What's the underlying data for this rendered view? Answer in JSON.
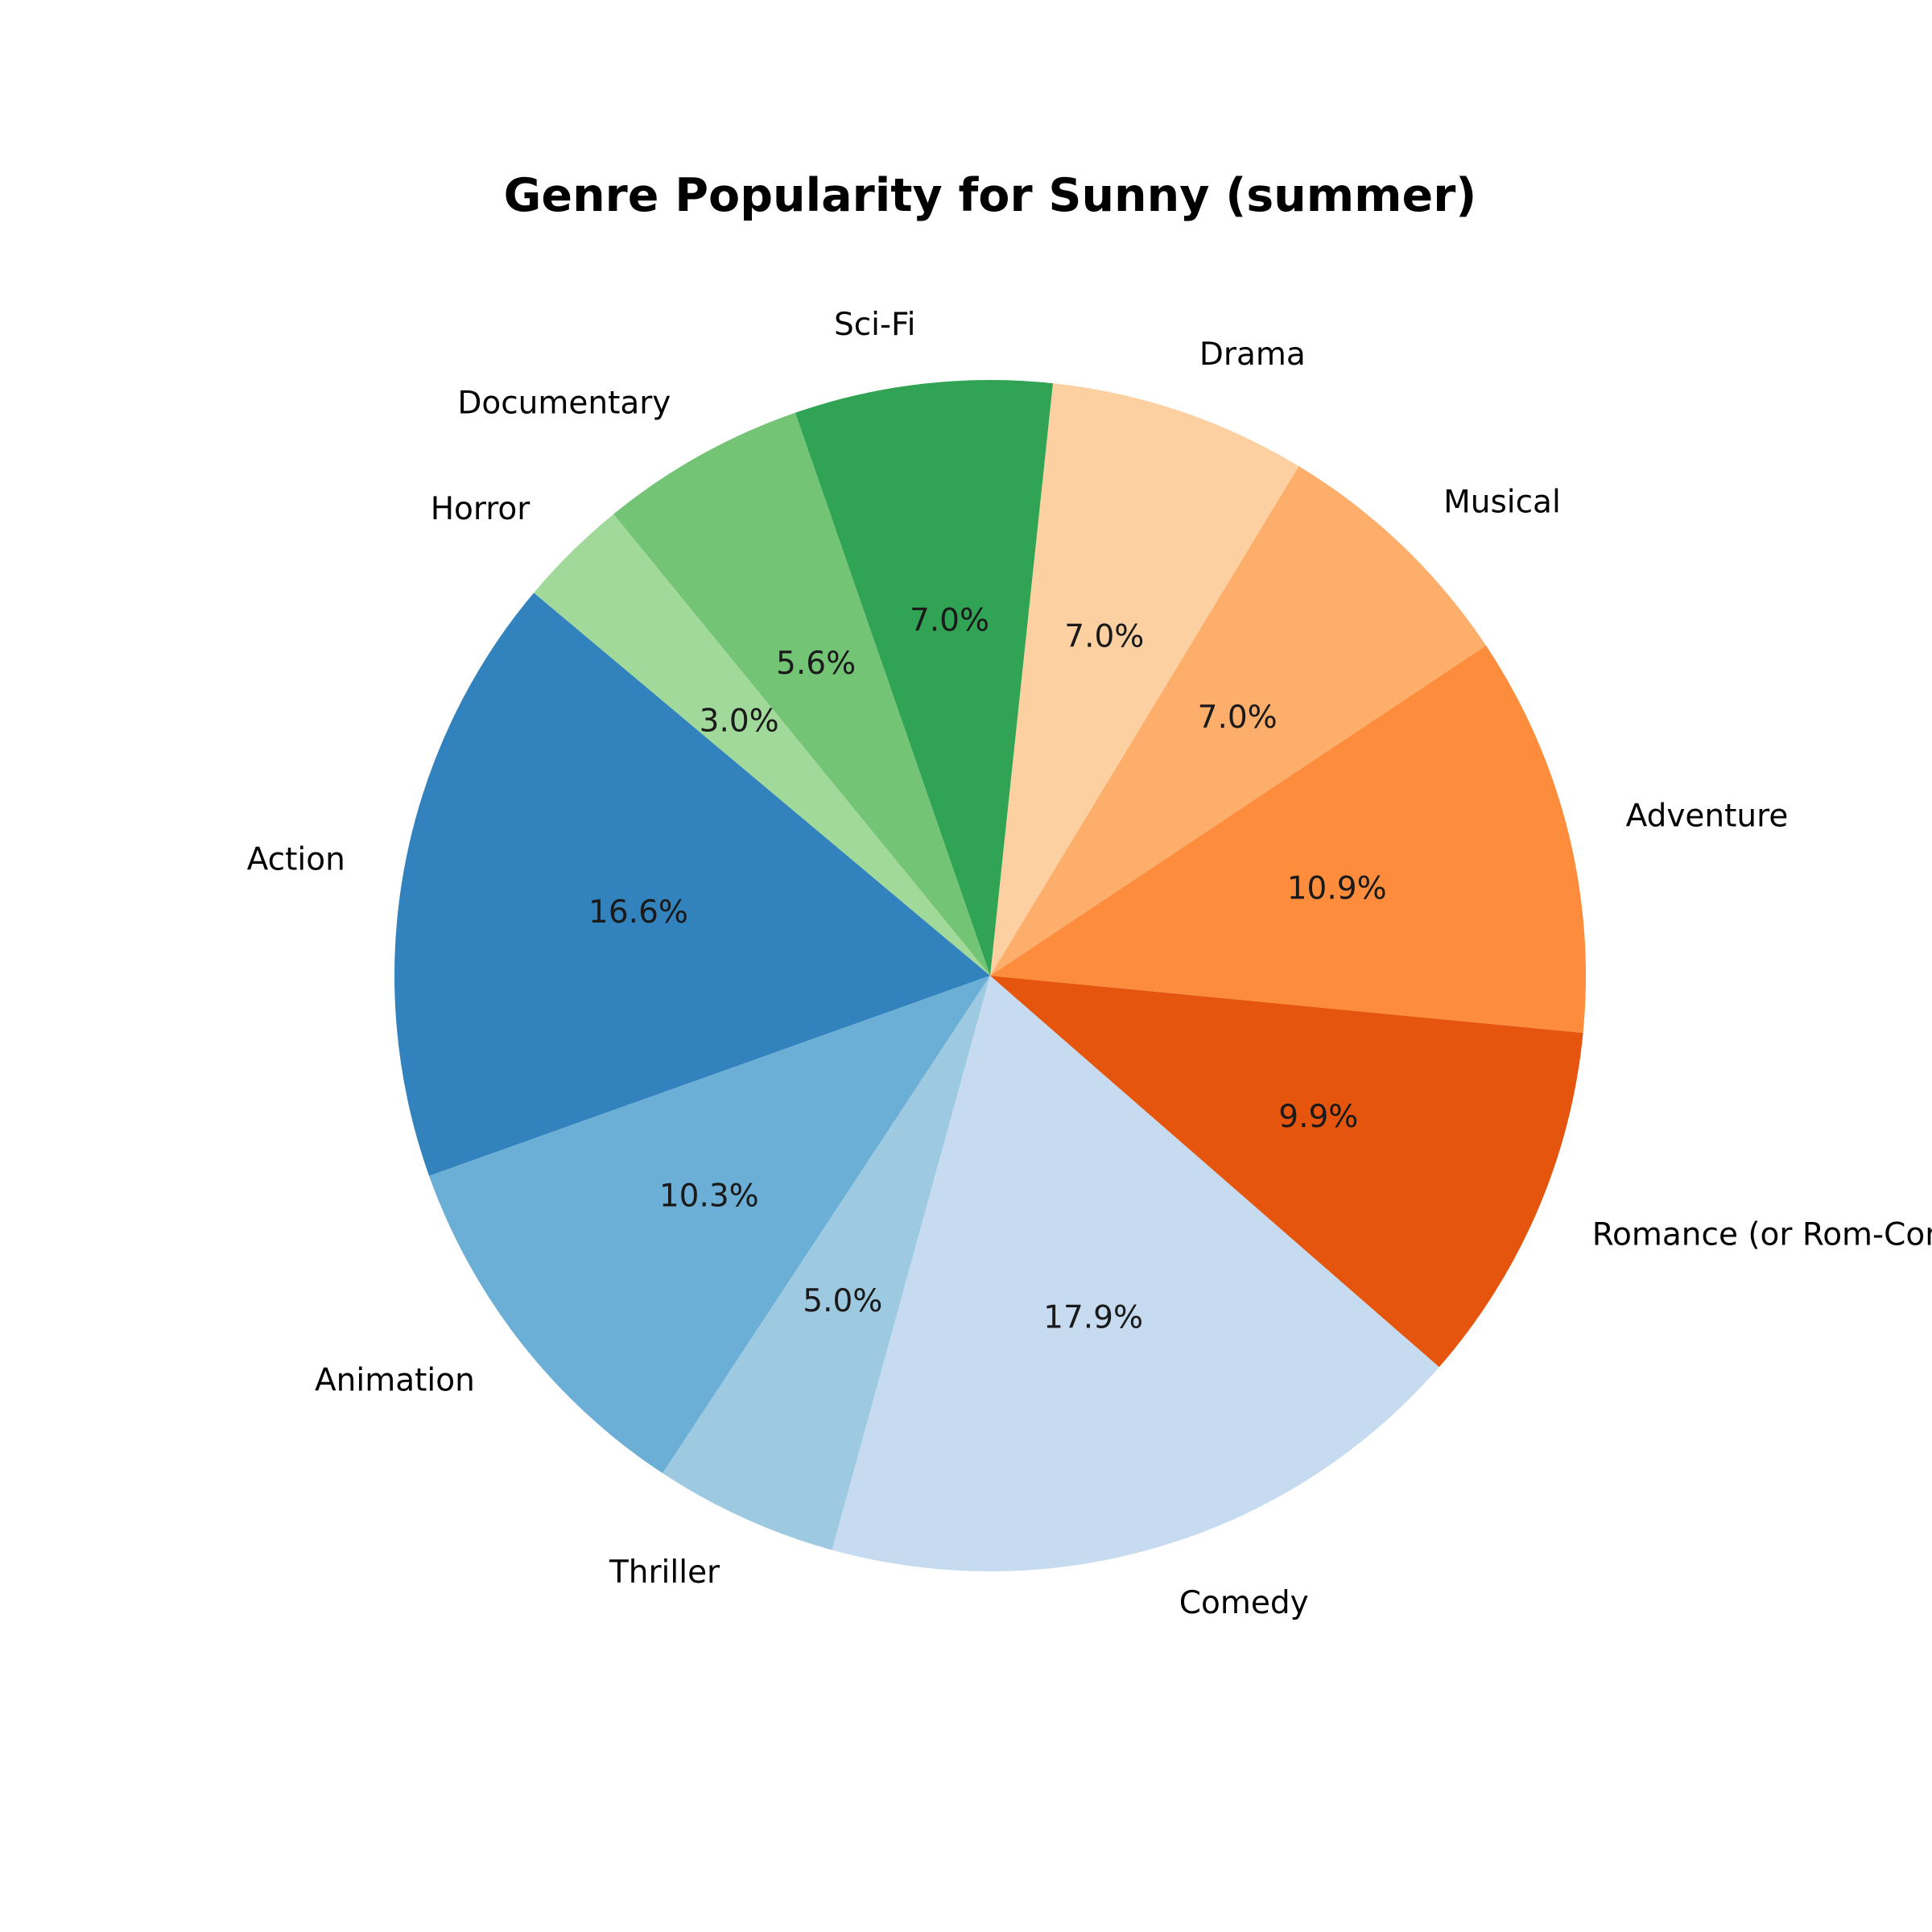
{
  "chart_data": {
    "type": "pie",
    "title": "Genre Popularity for Sunny (summer)",
    "start_angle_deg": 140,
    "direction": "counterclockwise",
    "slices": [
      {
        "label": "Action",
        "value": 16.6,
        "pct_label": "16.6%",
        "color": "#3282bd"
      },
      {
        "label": "Animation",
        "value": 10.3,
        "pct_label": "10.3%",
        "color": "#6baed6"
      },
      {
        "label": "Thriller",
        "value": 5.0,
        "pct_label": "5.0%",
        "color": "#9ecae1"
      },
      {
        "label": "Comedy",
        "value": 17.9,
        "pct_label": "17.9%",
        "color": "#c6dbef"
      },
      {
        "label": "Romance (or Rom-Com)",
        "value": 9.9,
        "pct_label": "9.9%",
        "color": "#e6550d"
      },
      {
        "label": "Adventure",
        "value": 10.9,
        "pct_label": "10.9%",
        "color": "#fd8d3c"
      },
      {
        "label": "Musical",
        "value": 7.0,
        "pct_label": "7.0%",
        "color": "#fdae6b"
      },
      {
        "label": "Drama",
        "value": 7.0,
        "pct_label": "7.0%",
        "color": "#fdd0a2"
      },
      {
        "label": "Sci-Fi",
        "value": 7.0,
        "pct_label": "7.0%",
        "color": "#31a354"
      },
      {
        "label": "Documentary",
        "value": 5.6,
        "pct_label": "5.6%",
        "color": "#74c476"
      },
      {
        "label": "Horror",
        "value": 3.0,
        "pct_label": "3.0%",
        "color": "#a1d99b"
      }
    ]
  }
}
